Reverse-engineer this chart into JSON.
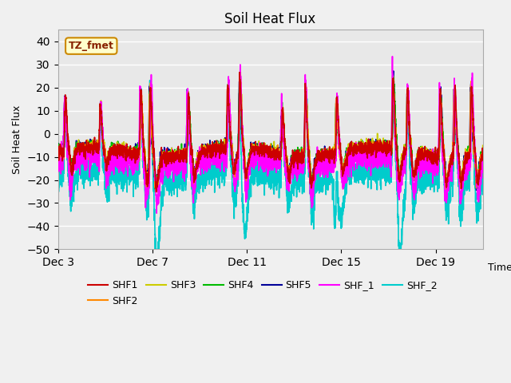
{
  "title": "Soil Heat Flux",
  "ylabel": "Soil Heat Flux",
  "xlabel": "Time",
  "ylim": [
    -50,
    45
  ],
  "yticks": [
    -50,
    -40,
    -30,
    -20,
    -10,
    0,
    10,
    20,
    30,
    40
  ],
  "xtick_labels": [
    "Dec 3",
    "Dec 7",
    "Dec 11",
    "Dec 15",
    "Dec 19"
  ],
  "xtick_positions": [
    3,
    7,
    11,
    15,
    19
  ],
  "fig_bg": "#f0f0f0",
  "ax_bg": "#e8e8e8",
  "series_colors": {
    "SHF1": "#cc0000",
    "SHF2": "#ff8800",
    "SHF3": "#cccc00",
    "SHF4": "#00bb00",
    "SHF5": "#000099",
    "SHF_1": "#ff00ff",
    "SHF_2": "#00cccc"
  },
  "label_box": {
    "text": "TZ_fmet",
    "bg": "#ffffcc",
    "edge": "#cc8800",
    "text_color": "#882200",
    "fontsize": 9
  },
  "legend_fontsize": 9,
  "title_fontsize": 12,
  "linewidth": 1.2
}
